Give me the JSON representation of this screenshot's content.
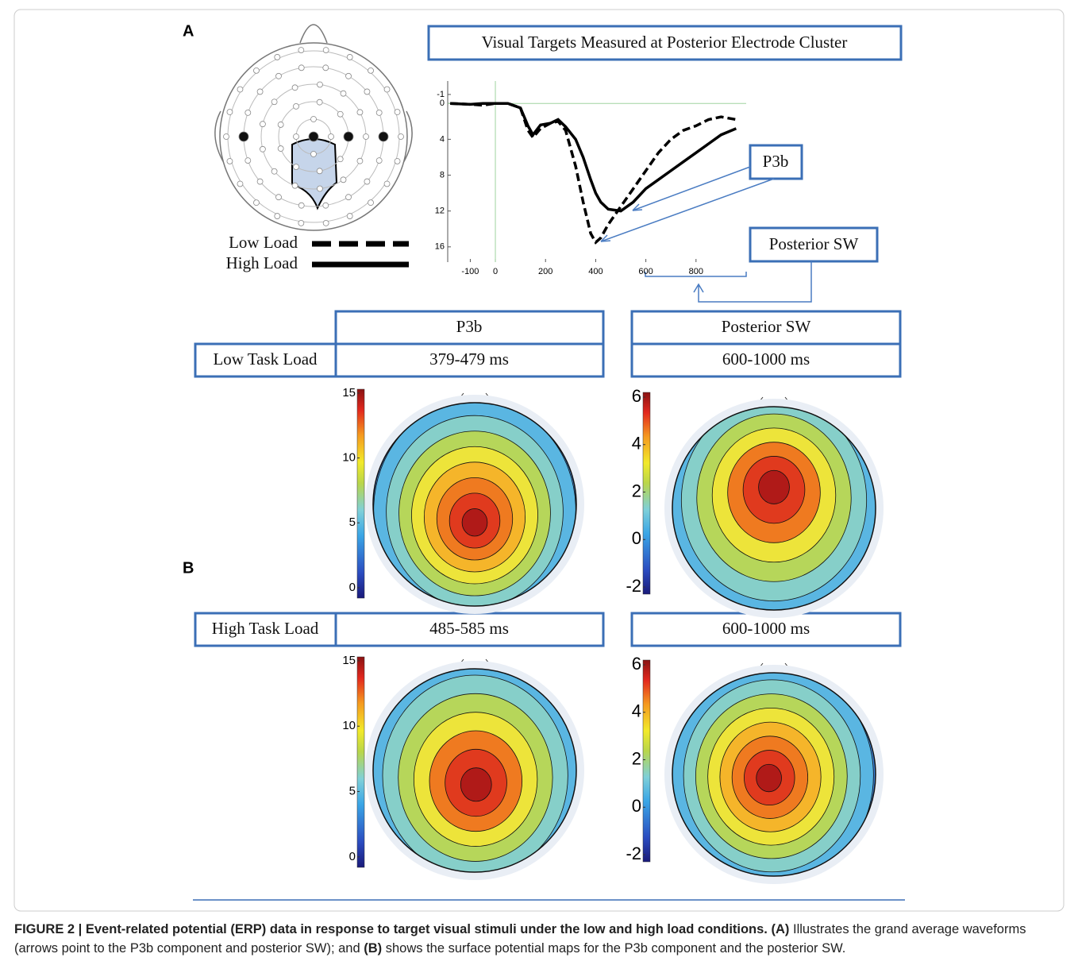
{
  "panel_labels": [
    "A",
    "B"
  ],
  "chart_data": {
    "type": "line",
    "title": "Visual Targets Measured at Posterior Electrode Cluster",
    "x": [
      -180,
      -100,
      -50,
      0,
      50,
      100,
      130,
      150,
      180,
      220,
      250,
      280,
      320,
      350,
      380,
      400,
      420,
      450,
      500,
      550,
      600,
      650,
      700,
      750,
      800,
      850,
      900,
      960
    ],
    "series": [
      {
        "name": "Low Load",
        "color": "#000000",
        "dash": "dashed",
        "values": [
          0,
          0.1,
          0.2,
          0,
          0,
          0.5,
          3,
          3.8,
          2.8,
          2.2,
          2.0,
          3,
          7,
          11,
          14.5,
          15.5,
          15,
          13.5,
          11.5,
          9.5,
          7.5,
          5.5,
          4,
          3,
          2.5,
          1.8,
          1.5,
          1.8
        ]
      },
      {
        "name": "High Load",
        "color": "#000000",
        "dash": "solid",
        "values": [
          0,
          0.1,
          0,
          0,
          0,
          0.5,
          2.5,
          3.5,
          2.4,
          2.2,
          1.8,
          2.6,
          4,
          6,
          8.5,
          10,
          11,
          11.8,
          12,
          11,
          9.5,
          8.5,
          7.5,
          6.5,
          5.5,
          4.5,
          3.5,
          2.8
        ]
      }
    ],
    "xlim": [
      -190,
      1000
    ],
    "xticks": [
      -100,
      0,
      200,
      400,
      600,
      800
    ],
    "ylim": [
      -2.5,
      17.7
    ],
    "yticks": [
      -1,
      0,
      4,
      8,
      12,
      16
    ],
    "y_inverted": true,
    "annotations": [
      "P3b",
      "Posterior SW"
    ]
  },
  "table": {
    "columns": [
      "P3b",
      "Posterior SW"
    ],
    "rows": [
      [
        "Low Task Load",
        "379-479 ms",
        "600-1000 ms"
      ],
      [
        "High Task Load",
        "485-585 ms",
        "600-1000 ms"
      ]
    ]
  },
  "topomaps": [
    {
      "cbar_lim": [
        -0.8,
        15.3
      ],
      "cbar_ticks": [
        0,
        5,
        10,
        15
      ]
    },
    {
      "cbar_lim": [
        -2.3,
        6.2
      ],
      "cbar_ticks": [
        -2,
        0,
        2,
        4,
        6
      ]
    },
    {
      "cbar_lim": [
        -0.8,
        15.3
      ],
      "cbar_ticks": [
        0,
        5,
        10,
        15
      ]
    },
    {
      "cbar_lim": [
        -2.3,
        6.2
      ],
      "cbar_ticks": [
        -2,
        0,
        2,
        4,
        6
      ]
    }
  ],
  "caption": {
    "label": "FIGURE 2 | Event-related potential (ERP) data in response to target visual stimuli under the low and high load conditions.",
    "a": "(A)",
    "text_a": " Illustrates the grand average waveforms (arrows point to the P3b component and posterior SW); and ",
    "b": "(B)",
    "text_b": " shows the surface potential maps for the P3b component and the posterior SW."
  }
}
